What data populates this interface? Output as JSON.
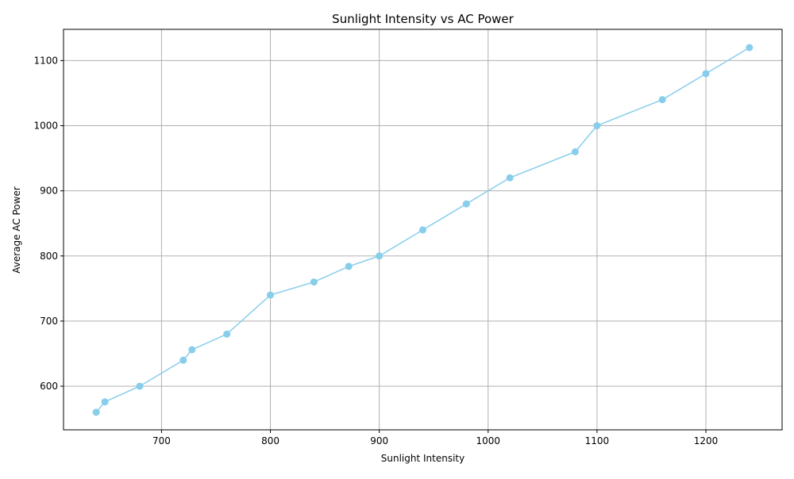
{
  "chart_data": {
    "type": "line",
    "title": "Sunlight Intensity vs AC Power",
    "xlabel": "Sunlight Intensity",
    "ylabel": "Average AC Power",
    "xlim": [
      610,
      1270
    ],
    "ylim": [
      533,
      1148
    ],
    "xticks": [
      700,
      800,
      900,
      1000,
      1100,
      1200
    ],
    "yticks": [
      600,
      700,
      800,
      900,
      1000,
      1100
    ],
    "grid": true,
    "line_color": "#87CEEB",
    "series": [
      {
        "x": [
          640,
          648,
          680,
          720,
          728,
          760,
          800,
          840,
          872,
          900,
          940,
          980,
          1020,
          1080,
          1100,
          1160,
          1200,
          1240
        ],
        "y": [
          560,
          576,
          600,
          640,
          656,
          680,
          740,
          760,
          784,
          800,
          840,
          880,
          920,
          960,
          1000,
          1040,
          1080,
          1120
        ]
      }
    ]
  }
}
